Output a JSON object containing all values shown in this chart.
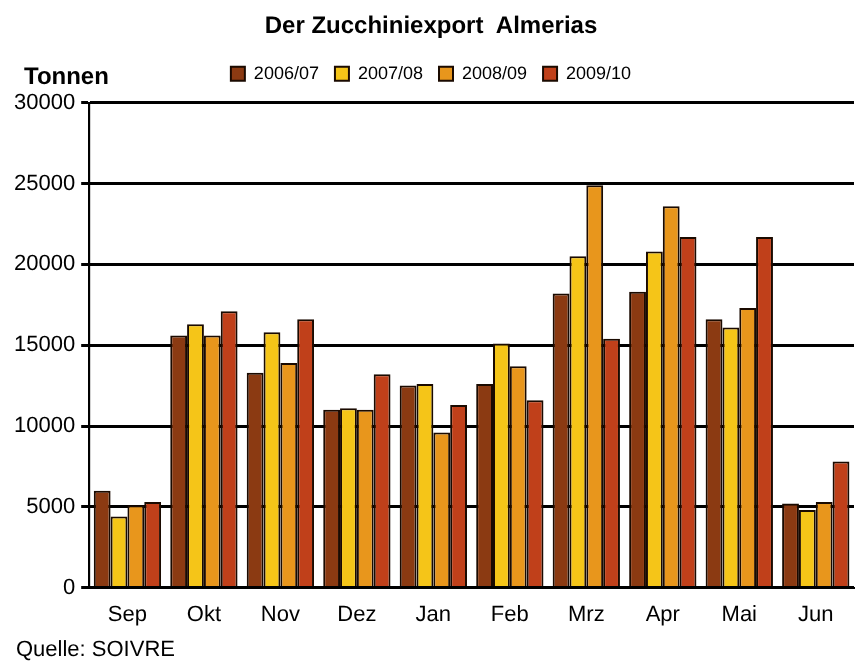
{
  "chart_data": {
    "type": "bar",
    "title": "Der Zucchiniexport  Almerias",
    "ylabel": "Tonnen",
    "annotations": [
      "Quelle: SOIVRE"
    ],
    "categories": [
      "Sep",
      "Okt",
      "Nov",
      "Dez",
      "Jan",
      "Feb",
      "Mrz",
      "Apr",
      "Mai",
      "Jun"
    ],
    "series": [
      {
        "name": "2006/07",
        "color": "#8b3a12",
        "values": [
          6000,
          15600,
          13300,
          11000,
          12500,
          12600,
          18200,
          18300,
          16600,
          5200
        ]
      },
      {
        "name": "2007/08",
        "color": "#f5c518",
        "values": [
          4400,
          16300,
          15800,
          11100,
          12600,
          15100,
          20500,
          20800,
          16100,
          4800
        ]
      },
      {
        "name": "2008/09",
        "color": "#e8961c",
        "values": [
          5100,
          15600,
          13900,
          11000,
          9600,
          13700,
          24900,
          23600,
          17300,
          5300
        ]
      },
      {
        "name": "2009/10",
        "color": "#c0401a",
        "values": [
          5300,
          17100,
          16600,
          13200,
          11300,
          11600,
          15400,
          21700,
          21700,
          7800
        ]
      }
    ],
    "ylim": [
      0,
      30000
    ],
    "yticks": [
      0,
      5000,
      10000,
      15000,
      20000,
      25000,
      30000
    ],
    "grid": "y",
    "legend": "top"
  }
}
